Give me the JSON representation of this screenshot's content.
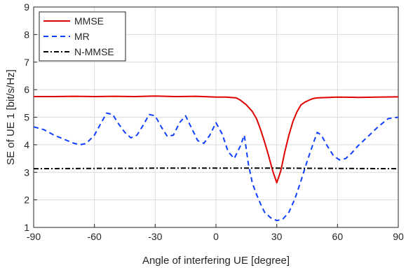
{
  "chart_data": {
    "type": "line",
    "title": "",
    "xlabel": "Angle of interfering UE [degree]",
    "ylabel": "SE of UE 1 [bit/s/Hz]",
    "xlim": [
      -90,
      90
    ],
    "ylim": [
      1,
      9
    ],
    "xticks": [
      -90,
      -60,
      -30,
      0,
      30,
      60,
      90
    ],
    "yticks": [
      1,
      2,
      3,
      4,
      5,
      6,
      7,
      8,
      9
    ],
    "grid": true,
    "legend_position": "top-left",
    "series": [
      {
        "name": "MMSE",
        "color": "#e00000",
        "dash": "solid",
        "x": [
          -90,
          -80,
          -70,
          -60,
          -50,
          -40,
          -30,
          -20,
          -10,
          0,
          5,
          10,
          12,
          15,
          18,
          20,
          22,
          24,
          26,
          28,
          30,
          32,
          34,
          36,
          38,
          40,
          42,
          44,
          46,
          48,
          50,
          60,
          70,
          80,
          90
        ],
        "y": [
          5.75,
          5.75,
          5.76,
          5.75,
          5.76,
          5.75,
          5.77,
          5.75,
          5.76,
          5.73,
          5.73,
          5.7,
          5.62,
          5.45,
          5.2,
          4.95,
          4.55,
          4.1,
          3.6,
          3.05,
          2.62,
          3.05,
          3.75,
          4.35,
          4.85,
          5.2,
          5.45,
          5.55,
          5.62,
          5.68,
          5.7,
          5.73,
          5.72,
          5.73,
          5.74
        ]
      },
      {
        "name": "MR",
        "color": "#1040ff",
        "dash": "dashed",
        "x": [
          -90,
          -85,
          -80,
          -75,
          -70,
          -67,
          -64,
          -60,
          -57,
          -54,
          -51,
          -48,
          -45,
          -42,
          -39,
          -36,
          -33,
          -30,
          -27,
          -24,
          -21,
          -18,
          -15,
          -12,
          -9,
          -6,
          -3,
          0,
          3,
          6,
          9,
          12,
          14,
          16,
          18,
          20,
          22,
          24,
          27,
          30,
          33,
          36,
          39,
          42,
          45,
          48,
          50,
          52,
          55,
          58,
          61,
          64,
          67,
          70,
          75,
          80,
          85,
          90
        ],
        "y": [
          4.65,
          4.55,
          4.35,
          4.2,
          4.05,
          4.0,
          4.05,
          4.35,
          4.75,
          5.15,
          5.1,
          4.75,
          4.45,
          4.25,
          4.35,
          4.7,
          5.1,
          5.05,
          4.65,
          4.3,
          4.35,
          4.8,
          5.05,
          4.6,
          4.15,
          4.05,
          4.35,
          4.8,
          4.4,
          3.75,
          3.5,
          3.95,
          4.35,
          3.3,
          2.6,
          2.2,
          1.85,
          1.55,
          1.35,
          1.25,
          1.3,
          1.55,
          2.05,
          2.7,
          3.4,
          4.05,
          4.45,
          4.35,
          3.95,
          3.6,
          3.45,
          3.5,
          3.7,
          3.95,
          4.3,
          4.65,
          4.95,
          5.0
        ]
      },
      {
        "name": "N-MMSE",
        "color": "#000000",
        "dash": "dashdot",
        "x": [
          -90,
          -60,
          -30,
          0,
          30,
          60,
          90
        ],
        "y": [
          3.13,
          3.14,
          3.15,
          3.15,
          3.15,
          3.14,
          3.13
        ]
      }
    ]
  }
}
